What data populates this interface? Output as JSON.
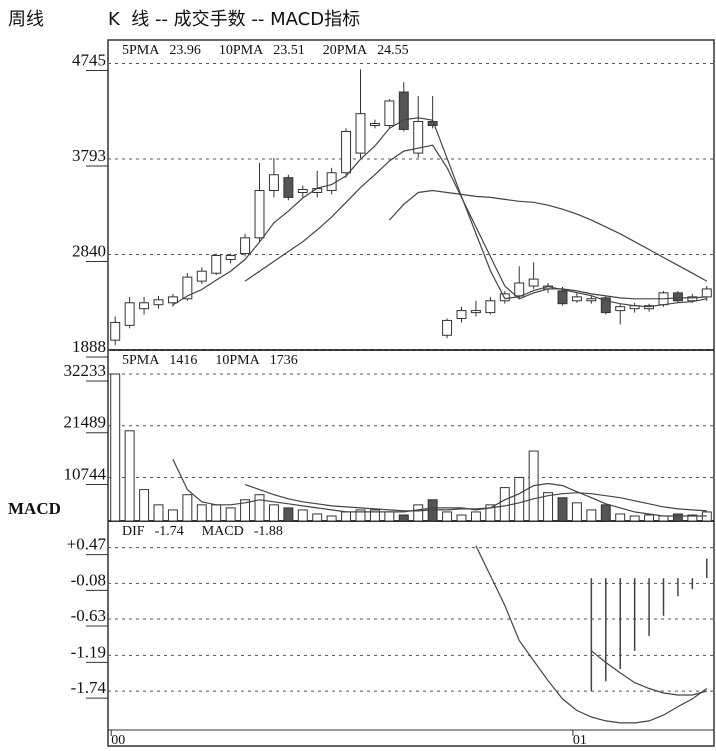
{
  "title_left": "周线",
  "title": "K  线 -- 成交手数 -- MACD指标",
  "chart_data": [
    {
      "type": "candlestick",
      "categories": [
        "00",
        null,
        null,
        null,
        null,
        null,
        null,
        null,
        null,
        null,
        null,
        null,
        null,
        null,
        null,
        null,
        null,
        null,
        null,
        null,
        null,
        null,
        null,
        null,
        null,
        null,
        null,
        null,
        null,
        null,
        null,
        null,
        "01",
        null,
        null,
        null,
        null,
        null,
        null,
        null,
        null,
        null
      ],
      "open": [
        1986,
        2134,
        2300,
        2340,
        2359,
        2399,
        2575,
        2654,
        2791,
        2850,
        3007,
        3479,
        3607,
        3459,
        3459,
        3479,
        3656,
        3852,
        4127,
        4127,
        4461,
        3852,
        4167,
        2035,
        2202,
        2261,
        2261,
        2379,
        2428,
        2526,
        2497,
        2477,
        2379,
        2379,
        2408,
        2281,
        2300,
        2300,
        2340,
        2458,
        2379,
        2418
      ],
      "close": [
        2163,
        2359,
        2359,
        2389,
        2418,
        2615,
        2674,
        2831,
        2831,
        3007,
        3479,
        3636,
        3410,
        3489,
        3498,
        3656,
        4068,
        4245,
        4147,
        4372,
        4088,
        4167,
        4127,
        2183,
        2281,
        2281,
        2379,
        2448,
        2556,
        2595,
        2526,
        2350,
        2418,
        2399,
        2261,
        2320,
        2330,
        2330,
        2458,
        2379,
        2418,
        2497
      ],
      "high": [
        2222,
        2418,
        2418,
        2428,
        2448,
        2654,
        2713,
        2850,
        2850,
        3047,
        3754,
        3803,
        3636,
        3528,
        3675,
        3705,
        4098,
        4687,
        4186,
        4392,
        4559,
        4422,
        4422,
        2202,
        2320,
        2379,
        2418,
        2477,
        2723,
        2762,
        2556,
        2516,
        2458,
        2428,
        2428,
        2350,
        2359,
        2350,
        2477,
        2477,
        2448,
        2526
      ],
      "low": [
        1937,
        2104,
        2242,
        2300,
        2320,
        2379,
        2546,
        2634,
        2752,
        2821,
        2968,
        3410,
        3381,
        3410,
        3410,
        3440,
        3607,
        3803,
        4098,
        4098,
        4068,
        3803,
        4098,
        2006,
        2163,
        2222,
        2242,
        2350,
        2399,
        2497,
        2458,
        2330,
        2359,
        2350,
        2242,
        2143,
        2261,
        2271,
        2320,
        2359,
        2359,
        2379
      ],
      "up_color": "#ffffff",
      "down_color": "#555555",
      "edge_color": "#333333",
      "series": [
        {
          "name": "5PMA",
          "legend_value": 23.96,
          "color": "#444444",
          "values": [
            null,
            null,
            null,
            null,
            2338,
            2428,
            2491,
            2585,
            2674,
            2792,
            2964,
            3157,
            3273,
            3404,
            3502,
            3538,
            3624,
            3791,
            3923,
            4098,
            4184,
            4204,
            4180,
            3800,
            3420,
            3050,
            2680,
            2400,
            2420,
            2480,
            2520,
            2490,
            2460,
            2430,
            2380,
            2350,
            2330,
            2320,
            2340,
            2360,
            2370,
            2400
          ]
        },
        {
          "name": "10PMA",
          "legend_value": 23.51,
          "color": "#444444",
          "values": [
            null,
            null,
            null,
            null,
            null,
            null,
            null,
            null,
            null,
            2575,
            2674,
            2772,
            2870,
            2968,
            3086,
            3214,
            3361,
            3508,
            3636,
            3773,
            3872,
            3901,
            3931,
            3705,
            3410,
            3116,
            2821,
            2526,
            2399,
            2458,
            2497,
            2497,
            2477,
            2448,
            2428,
            2408,
            2399,
            2399,
            2399,
            2408,
            2408,
            2418
          ]
        },
        {
          "name": "20PMA",
          "legend_value": 24.55,
          "color": "#444444",
          "values": [
            null,
            null,
            null,
            null,
            null,
            null,
            null,
            null,
            null,
            null,
            null,
            null,
            null,
            null,
            null,
            null,
            null,
            null,
            null,
            3184,
            3341,
            3459,
            3479,
            3459,
            3440,
            3420,
            3410,
            3390,
            3371,
            3361,
            3332,
            3292,
            3243,
            3184,
            3116,
            3047,
            2968,
            2890,
            2811,
            2733,
            2654,
            2575
          ]
        }
      ],
      "ylim": [
        1888,
        4960
      ],
      "yticks": [
        1888,
        2840,
        3793,
        4745
      ],
      "grid": true
    },
    {
      "type": "bar",
      "values": [
        32233,
        20436,
        8216,
        5055,
        4000,
        7162,
        5055,
        5055,
        4423,
        6109,
        7162,
        5055,
        4423,
        4000,
        3159,
        2737,
        3580,
        4000,
        4000,
        3580,
        2948,
        5055,
        6109,
        3580,
        2948,
        3580,
        5055,
        8637,
        10744,
        16222,
        7584,
        6530,
        5476,
        4000,
        5055,
        3159,
        2737,
        2948,
        2737,
        3159,
        2948,
        3580
      ],
      "series": [
        {
          "name": "5PMA",
          "legend_value": 1416,
          "color": "#444444",
          "values": [
            null,
            null,
            null,
            null,
            14537,
            8216,
            5687,
            5055,
            5055,
            5476,
            6109,
            5687,
            5266,
            4845,
            4423,
            4000,
            3580,
            3580,
            3580,
            3580,
            3580,
            4000,
            4423,
            4423,
            4423,
            4000,
            4423,
            6109,
            7373,
            9058,
            9480,
            9058,
            7794,
            6530,
            5266,
            4423,
            3580,
            3159,
            2737,
            2737,
            2737,
            2737
          ]
        },
        {
          "name": "10PMA",
          "legend_value": 1736,
          "color": "#444444",
          "values": [
            null,
            null,
            null,
            null,
            null,
            null,
            null,
            null,
            null,
            9269,
            8216,
            7162,
            6320,
            5687,
            5266,
            4845,
            4634,
            4423,
            4212,
            4000,
            3790,
            3790,
            4000,
            4000,
            4212,
            4212,
            4423,
            4845,
            5476,
            6320,
            6952,
            7373,
            7584,
            7373,
            6952,
            6530,
            5898,
            5266,
            4634,
            4212,
            4000,
            3790
          ]
        }
      ],
      "ylim": [
        1700,
        36800
      ],
      "yticks": [
        10744,
        21489,
        32233
      ],
      "grid": true
    },
    {
      "type": "macd",
      "ylabel": "MACD",
      "series": [
        {
          "name": "DIF",
          "legend_value": -1.74,
          "color": "#444444",
          "values": [
            null,
            null,
            null,
            null,
            null,
            null,
            null,
            null,
            null,
            null,
            null,
            null,
            null,
            null,
            null,
            null,
            null,
            null,
            null,
            null,
            null,
            null,
            null,
            null,
            null,
            0.5,
            0.04,
            -0.42,
            -0.96,
            -1.27,
            -1.58,
            -1.86,
            -2.04,
            -2.14,
            -2.2,
            -2.23,
            -2.23,
            -2.2,
            -2.11,
            -1.98,
            -1.86,
            -1.7
          ]
        },
        {
          "name": "MACD",
          "legend_value": -1.88,
          "color": "#444444",
          "values": [
            null,
            null,
            null,
            null,
            null,
            null,
            null,
            null,
            null,
            null,
            null,
            null,
            null,
            null,
            null,
            null,
            null,
            null,
            null,
            null,
            null,
            null,
            null,
            null,
            null,
            null,
            null,
            null,
            null,
            null,
            null,
            null,
            null,
            -1.12,
            -1.3,
            -1.46,
            -1.61,
            -1.7,
            -1.77,
            -1.8,
            -1.8,
            -1.74
          ]
        }
      ],
      "histogram": {
        "color": "#444444",
        "values": [
          null,
          null,
          null,
          null,
          null,
          null,
          null,
          null,
          null,
          null,
          null,
          null,
          null,
          null,
          null,
          null,
          null,
          null,
          null,
          null,
          null,
          null,
          null,
          null,
          null,
          null,
          null,
          null,
          null,
          null,
          null,
          null,
          null,
          -1.74,
          -1.59,
          -1.4,
          -1.12,
          -0.89,
          -0.58,
          -0.28,
          -0.17,
          0.3
        ]
      },
      "ylim": [
        -2.34,
        0.85
      ],
      "yticks": [
        {
          "value": -1.74,
          "label": "-1.74"
        },
        -1.19,
        -0.63,
        -0.08,
        {
          "value": 0.47,
          "label": "+0.47"
        }
      ],
      "grid": true
    }
  ]
}
